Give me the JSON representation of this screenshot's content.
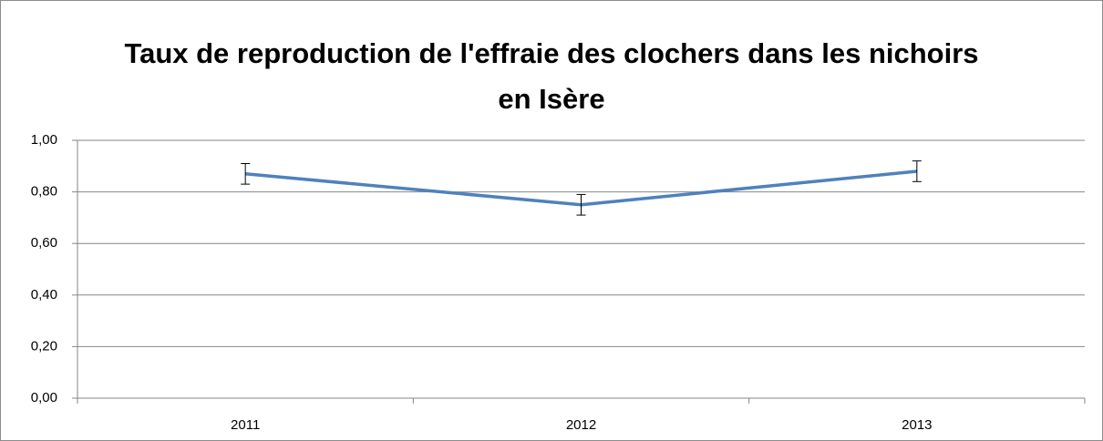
{
  "chart_data": {
    "type": "line",
    "title": "Taux de reproduction de l'effraie des clochers dans les nichoirs en Isère",
    "categories": [
      "2011",
      "2012",
      "2013"
    ],
    "values": [
      0.87,
      0.75,
      0.88
    ],
    "errors": [
      0.04,
      0.04,
      0.04
    ],
    "color": "#4f81bd",
    "ylim": [
      0,
      1
    ],
    "yticks": [
      {
        "value": 0,
        "label": "0,00"
      },
      {
        "value": 0.2,
        "label": "0,20"
      },
      {
        "value": 0.4,
        "label": "0,40"
      },
      {
        "value": 0.6,
        "label": "0,60"
      },
      {
        "value": 0.8,
        "label": "0,80"
      },
      {
        "value": 1,
        "label": "1,00"
      }
    ],
    "grid": true
  }
}
